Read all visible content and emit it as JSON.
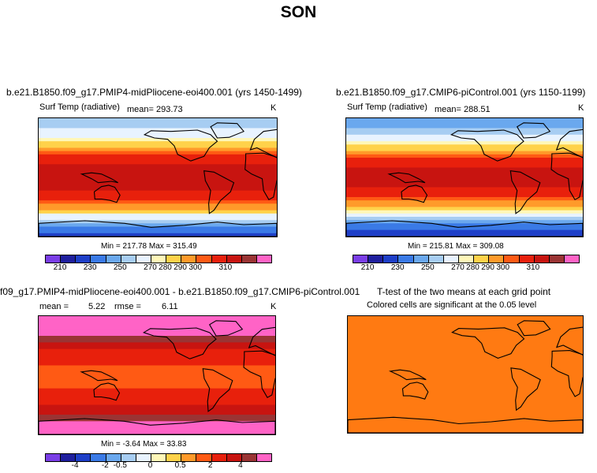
{
  "page": {
    "season": "SON"
  },
  "colors": {
    "abs_scale": [
      "#7a3ee6",
      "#1f1f9e",
      "#1e3fc8",
      "#3a7ae6",
      "#6aa8ee",
      "#a7cdf2",
      "#e8f3ff",
      "#fff7b8",
      "#ffd24a",
      "#ff9a2a",
      "#ff5a14",
      "#e8200c",
      "#c81410",
      "#9a3434",
      "#ff63c6"
    ],
    "diff_scale": [
      "#7a3ee6",
      "#1f1f9e",
      "#1e3fc8",
      "#3a7ae6",
      "#6aa8ee",
      "#a7cdf2",
      "#e8f3ff",
      "#fff7b8",
      "#ffd24a",
      "#ff9a2a",
      "#ff5a14",
      "#e8200c",
      "#c81410",
      "#9a3434",
      "#ff63c6"
    ],
    "ttest_fill": "#ff7a12"
  },
  "chart_data": [
    {
      "type": "heatmap",
      "title": "b.e21.B1850.f09_g17.PMIP4-midPliocene-eoi400.001 (yrs 1450-1499)",
      "variable": "Surf Temp (radiative)",
      "mean_text": "mean= 293.73",
      "units": "K",
      "minmax_text": "Min = 217.78 Max = 315.49",
      "min": 217.78,
      "max": 315.49,
      "mean": 293.73,
      "colorbar_ticks": [
        "210",
        "230",
        "250",
        "270",
        "280",
        "290",
        "300",
        "310"
      ],
      "zonal_profile_K": {
        "lat": [
          90,
          70,
          50,
          30,
          10,
          -10,
          -30,
          -50,
          -70,
          -90
        ],
        "value": [
          255,
          268,
          283,
          298,
          303,
          303,
          298,
          285,
          255,
          225
        ]
      }
    },
    {
      "type": "heatmap",
      "title": "b.e21.B1850.f09_g17.CMIP6-piControl.001 (yrs 1150-1199)",
      "variable": "Surf Temp (radiative)",
      "mean_text": "mean= 288.51",
      "units": "K",
      "minmax_text": "Min = 215.81 Max = 309.08",
      "min": 215.81,
      "max": 309.08,
      "mean": 288.51,
      "colorbar_ticks": [
        "210",
        "230",
        "250",
        "270",
        "280",
        "290",
        "300",
        "310"
      ],
      "zonal_profile_K": {
        "lat": [
          90,
          70,
          50,
          30,
          10,
          -10,
          -30,
          -50,
          -70,
          -90
        ],
        "value": [
          245,
          258,
          278,
          295,
          302,
          302,
          295,
          280,
          245,
          218
        ]
      }
    },
    {
      "type": "heatmap",
      "title": "f09_g17.PMIP4-midPliocene-eoi400.001 - b.e21.B1850.f09_g17.CMIP6-piControl.001",
      "mean_text": "mean =",
      "mean_value": "5.22",
      "rmse_text": "rmse =",
      "rmse_value": "6.11",
      "units": "K",
      "minmax_text": "Min = -3.64 Max = 33.83",
      "min": -3.64,
      "max": 33.83,
      "mean": 5.22,
      "rmse": 6.11,
      "colorbar_ticks": [
        "-4",
        "-2",
        "-0.5",
        "0",
        "0.5",
        "2",
        "4"
      ]
    },
    {
      "type": "heatmap",
      "title": "T-test of the two means at each grid point",
      "subtitle": "Colored cells are significant at the 0.05 level"
    }
  ]
}
